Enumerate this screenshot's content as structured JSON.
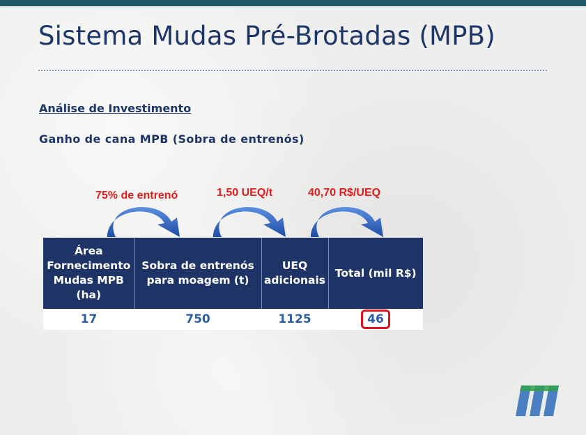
{
  "slide": {
    "title": "Sistema Mudas Pré-Brotadas (MPB)",
    "section_heading": "Análise de Investimento",
    "subtitle": "Ganho de cana MPB (Sobra de entrenós)"
  },
  "factors": [
    {
      "label": "75% de entrenó"
    },
    {
      "label": "1,50 UEQ/t"
    },
    {
      "label": "40,70 R$/UEQ"
    }
  ],
  "table": {
    "headers": [
      [
        "Área",
        "Fornecimento",
        "Mudas MPB",
        "(ha)"
      ],
      [
        "Sobra de entrenós",
        "para moagem (t)"
      ],
      [
        "UEQ",
        "adicionais"
      ],
      [
        "Total (mil R$)"
      ]
    ],
    "row": [
      "17",
      "750",
      "1125",
      "46"
    ]
  },
  "colors": {
    "title": "#1e3567",
    "table_header": "#1f3466",
    "factor_text": "#e01e1e",
    "arrow": "#2f65c4",
    "highlight": "#e0141e",
    "logo_blue": "#4a7fc1",
    "logo_green": "#2fa04a"
  },
  "icons": {
    "arrows": "curved-arrow-icon",
    "logo": "company-logo-icon"
  }
}
